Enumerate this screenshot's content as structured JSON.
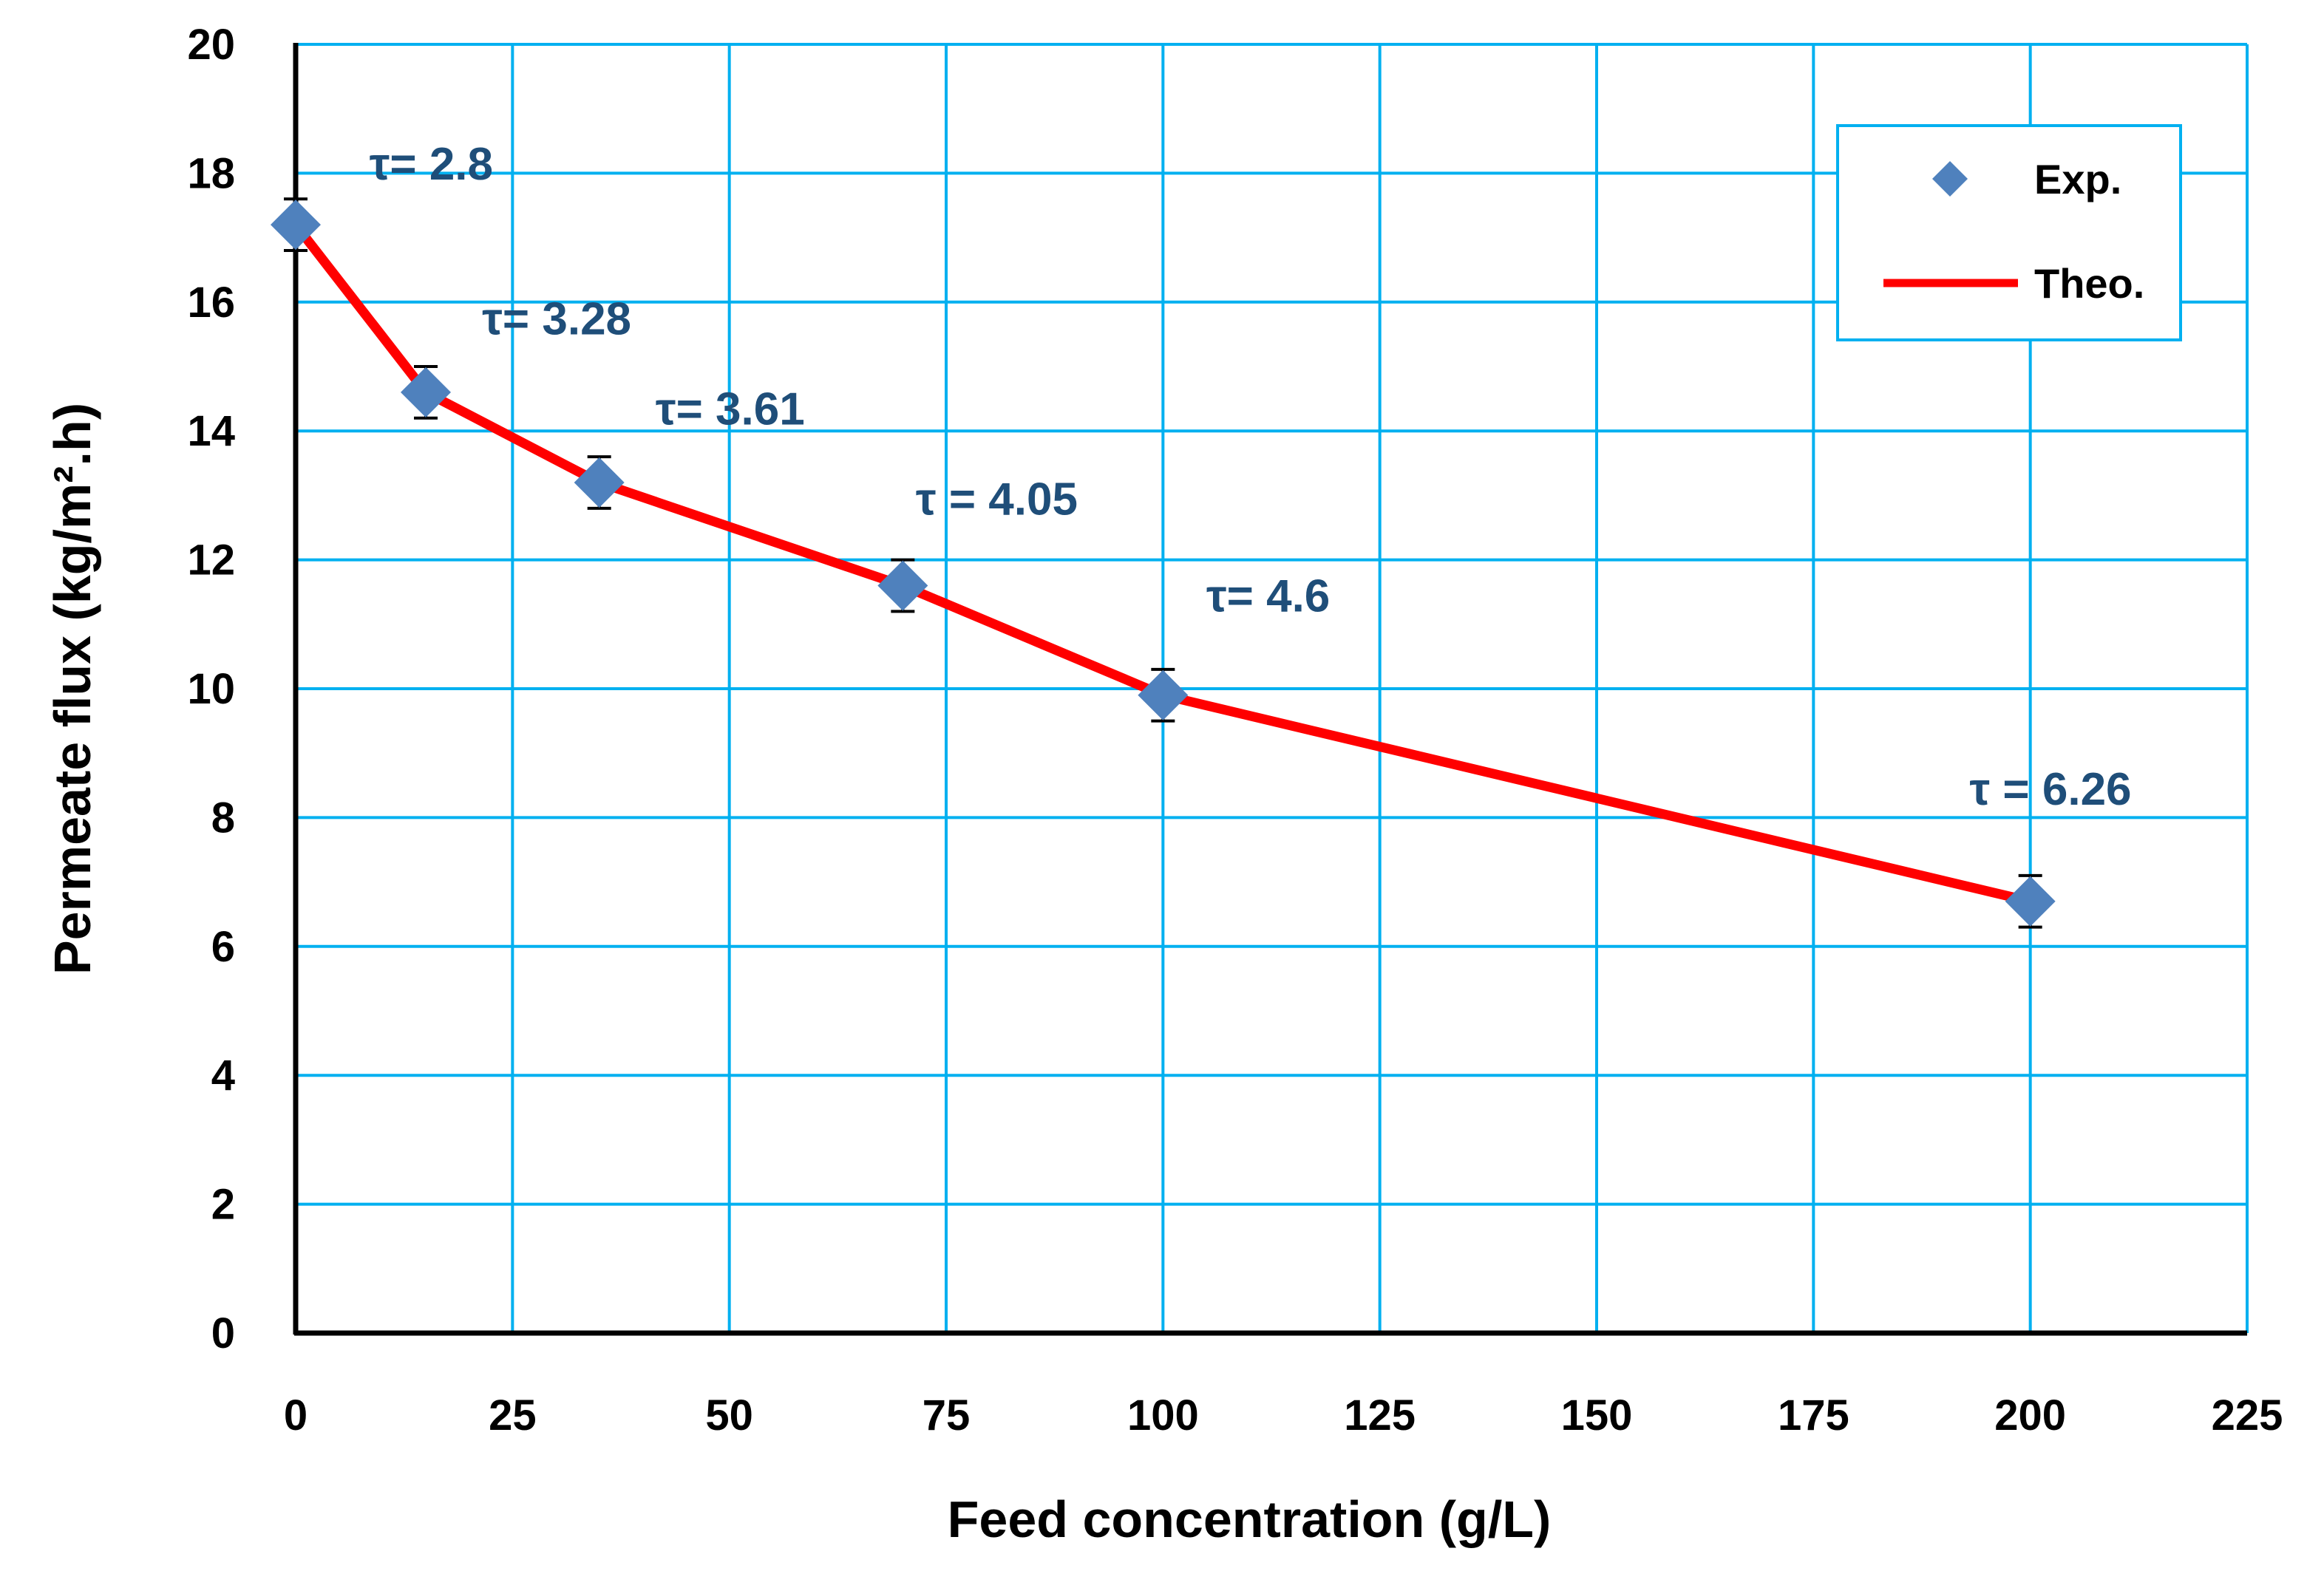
{
  "chart_data": {
    "type": "line",
    "title": "",
    "xlabel": "Feed concentration (g/L)",
    "ylabel": "Permeate flux (kg/m².h)",
    "xlim": [
      0,
      225
    ],
    "ylim": [
      0,
      20
    ],
    "x_ticks": [
      0,
      25,
      50,
      75,
      100,
      125,
      150,
      175,
      200,
      225
    ],
    "y_ticks": [
      0,
      2,
      4,
      6,
      8,
      10,
      12,
      14,
      16,
      18,
      20
    ],
    "grid": true,
    "legend_position": "top-right",
    "series": [
      {
        "name": "Exp.",
        "kind": "scatter",
        "marker": "diamond",
        "color": "#4F81BD",
        "x": [
          0,
          15,
          35,
          70,
          100,
          200
        ],
        "y": [
          17.2,
          14.6,
          13.2,
          11.6,
          9.9,
          6.7
        ],
        "error": [
          0.4,
          0.4,
          0.4,
          0.4,
          0.4,
          0.4
        ]
      },
      {
        "name": "Theo.",
        "kind": "line",
        "color": "#FF0000",
        "x": [
          0,
          15,
          35,
          70,
          100,
          200
        ],
        "y": [
          17.2,
          14.6,
          13.2,
          11.6,
          9.9,
          6.7
        ]
      }
    ],
    "annotations": [
      {
        "text": "τ= 2.8",
        "x": 8.5,
        "y": 17.9
      },
      {
        "text": "τ= 3.28",
        "x": 21.5,
        "y": 15.5
      },
      {
        "text": "τ= 3.61",
        "x": 41.5,
        "y": 14.1
      },
      {
        "text": "τ = 4.05",
        "x": 71.5,
        "y": 12.7
      },
      {
        "text": "τ= 4.6",
        "x": 105,
        "y": 11.2
      },
      {
        "text": "τ = 6.26",
        "x": 193,
        "y": 8.2
      }
    ],
    "colors": {
      "grid": "#00B0F0",
      "axis": "#000000",
      "annotation": "#1F4E79",
      "legend_border": "#00B0F0"
    }
  }
}
